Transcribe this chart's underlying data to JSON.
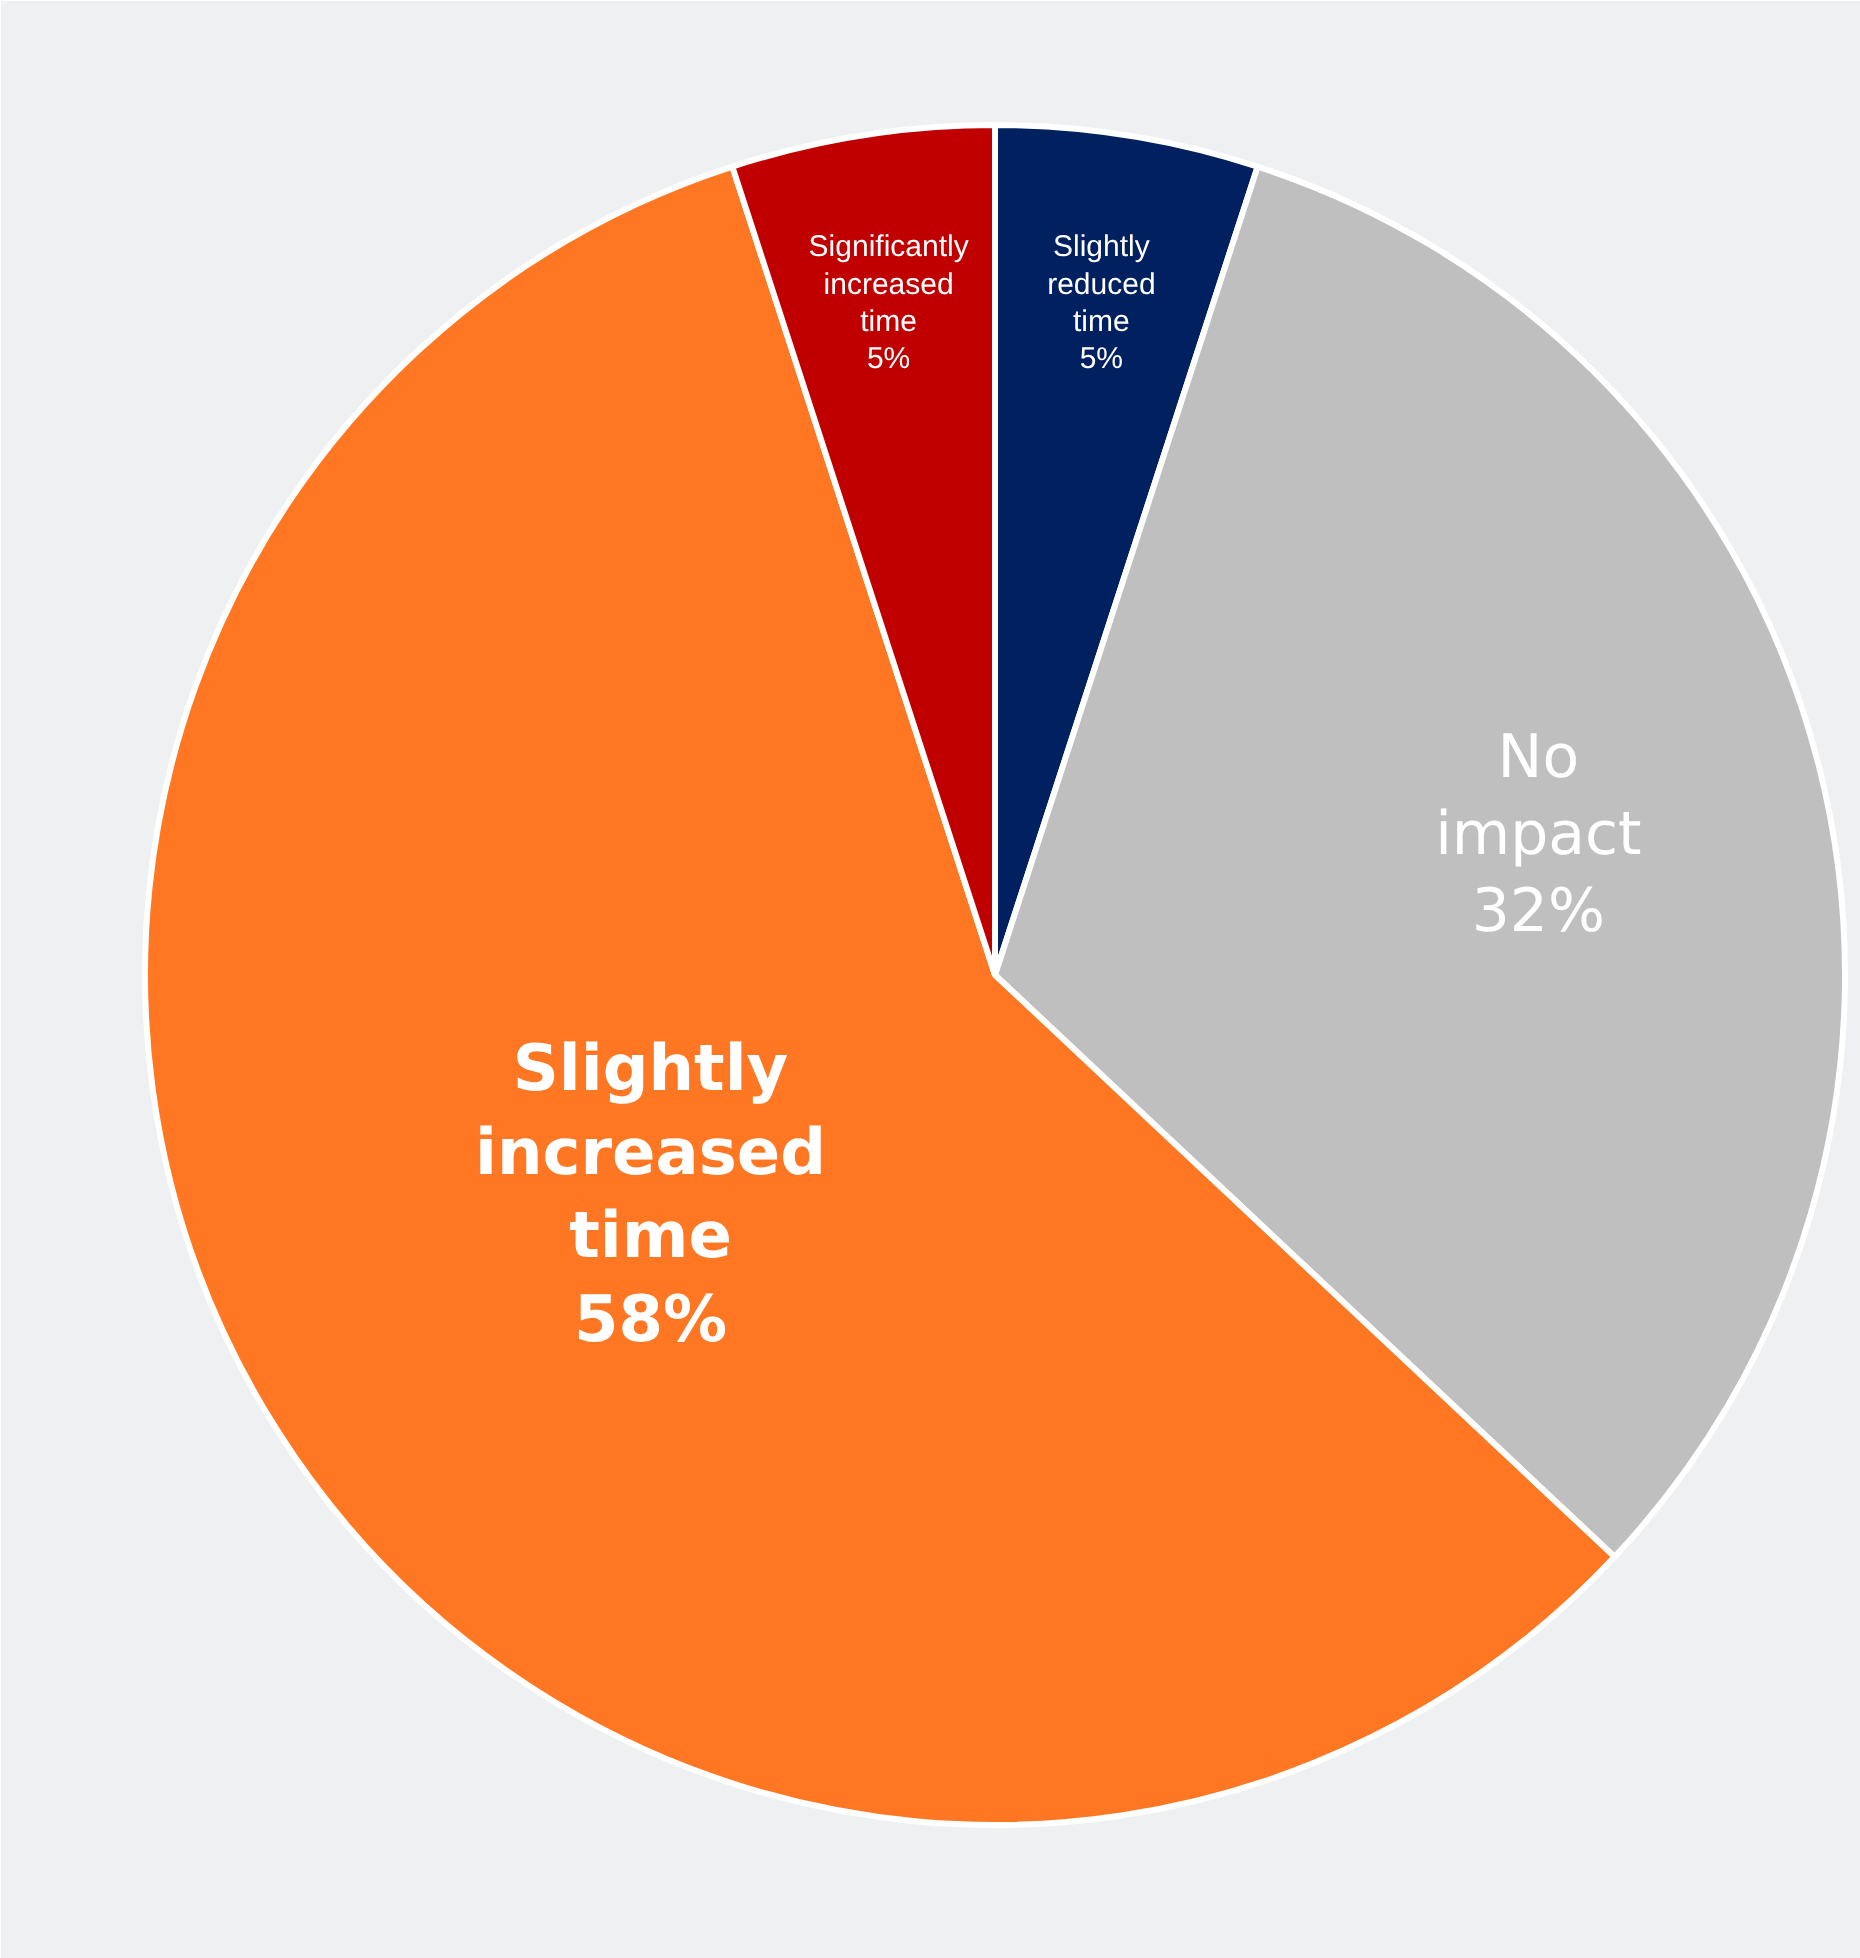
{
  "chart_data": {
    "type": "pie",
    "categories": [
      "Slightly reduced time",
      "No impact",
      "Slightly increased time",
      "Significantly increased time"
    ],
    "values": [
      5,
      32,
      58,
      5
    ],
    "colors": [
      "#002060",
      "#bfbfbf",
      "#ff7722",
      "#c00000"
    ],
    "value_labels": [
      "5%",
      "32%",
      "58%",
      "5%"
    ]
  }
}
